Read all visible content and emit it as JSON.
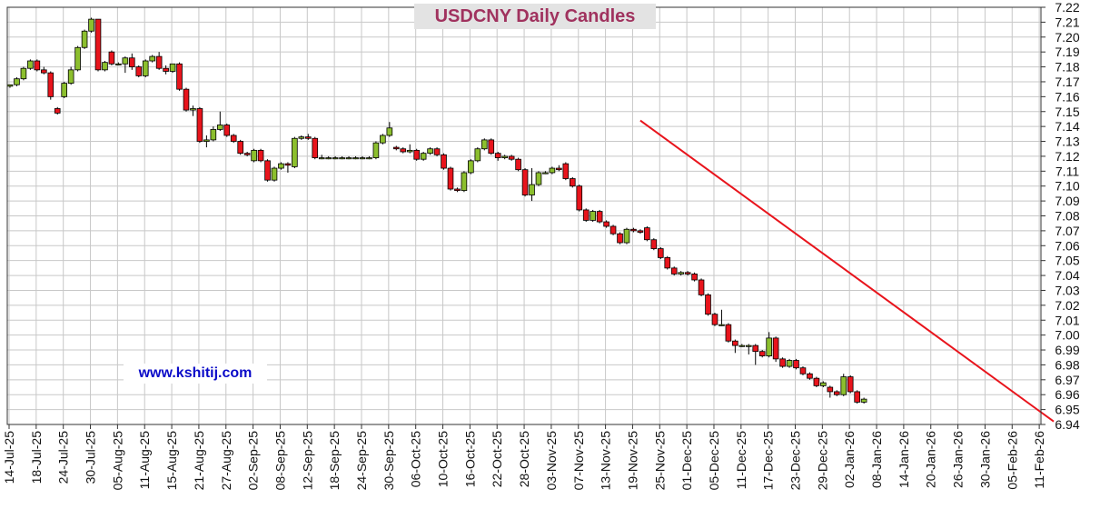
{
  "chart_data": {
    "type": "candlestick",
    "title": "USDCNY Daily Candles",
    "watermark": "www.kshitij.com",
    "y_ticks": [
      "7.22",
      "7.21",
      "7.20",
      "7.19",
      "7.18",
      "7.17",
      "7.16",
      "7.15",
      "7.14",
      "7.13",
      "7.12",
      "7.11",
      "7.10",
      "7.09",
      "7.08",
      "7.07",
      "7.06",
      "7.05",
      "7.04",
      "7.03",
      "7.02",
      "7.01",
      "7.00",
      "6.99",
      "6.98",
      "6.97",
      "6.96",
      "6.95",
      "6.94"
    ],
    "ylim": [
      6.94,
      7.22
    ],
    "x_ticks": [
      "14-Jul-25",
      "18-Jul-25",
      "24-Jul-25",
      "30-Jul-25",
      "05-Aug-25",
      "11-Aug-25",
      "15-Aug-25",
      "21-Aug-25",
      "27-Aug-25",
      "02-Sep-25",
      "08-Sep-25",
      "12-Sep-25",
      "18-Sep-25",
      "24-Sep-25",
      "30-Sep-25",
      "06-Oct-25",
      "10-Oct-25",
      "16-Oct-25",
      "22-Oct-25",
      "28-Oct-25",
      "03-Nov-25",
      "07-Nov-25",
      "13-Nov-25",
      "19-Nov-25",
      "25-Nov-25",
      "01-Dec-25",
      "05-Dec-25",
      "11-Dec-25",
      "17-Dec-25",
      "23-Dec-25",
      "29-Dec-25",
      "02-Jan-26",
      "08-Jan-26",
      "14-Jan-26",
      "20-Jan-26",
      "26-Jan-26",
      "30-Jan-26",
      "05-Feb-26",
      "11-Feb-26"
    ],
    "up_color": "#8cbf2e",
    "down_color": "#e8141c",
    "trendline": {
      "color": "#e8141c",
      "start": {
        "bar": 93,
        "value": 7.144
      },
      "end": {
        "bar": 154,
        "value": 6.942
      }
    },
    "grid": true,
    "candles": [
      [
        7.167,
        7.168,
        7.166,
        7.168
      ],
      [
        7.168,
        7.173,
        7.167,
        7.172
      ],
      [
        7.172,
        7.18,
        7.171,
        7.179
      ],
      [
        7.179,
        7.185,
        7.178,
        7.184
      ],
      [
        7.184,
        7.185,
        7.177,
        7.178
      ],
      [
        7.178,
        7.18,
        7.175,
        7.176
      ],
      [
        7.176,
        7.177,
        7.158,
        7.16
      ],
      [
        7.152,
        7.153,
        7.148,
        7.149
      ],
      [
        7.16,
        7.17,
        7.159,
        7.169
      ],
      [
        7.169,
        7.18,
        7.168,
        7.178
      ],
      [
        7.178,
        7.194,
        7.177,
        7.193
      ],
      [
        7.193,
        7.205,
        7.192,
        7.204
      ],
      [
        7.204,
        7.213,
        7.203,
        7.212
      ],
      [
        7.212,
        7.212,
        7.177,
        7.178
      ],
      [
        7.178,
        7.184,
        7.177,
        7.183
      ],
      [
        7.19,
        7.191,
        7.181,
        7.182
      ],
      [
        7.182,
        7.183,
        7.181,
        7.182
      ],
      [
        7.182,
        7.187,
        7.176,
        7.186
      ],
      [
        7.186,
        7.189,
        7.178,
        7.18
      ],
      [
        7.18,
        7.181,
        7.173,
        7.174
      ],
      [
        7.174,
        7.185,
        7.173,
        7.184
      ],
      [
        7.184,
        7.188,
        7.183,
        7.187
      ],
      [
        7.187,
        7.19,
        7.178,
        7.179
      ],
      [
        7.179,
        7.181,
        7.175,
        7.177
      ],
      [
        7.177,
        7.182,
        7.176,
        7.182
      ],
      [
        7.182,
        7.183,
        7.164,
        7.165
      ],
      [
        7.165,
        7.166,
        7.15,
        7.151
      ],
      [
        7.151,
        7.154,
        7.147,
        7.152
      ],
      [
        7.152,
        7.153,
        7.129,
        7.13
      ],
      [
        7.13,
        7.134,
        7.126,
        7.131
      ],
      [
        7.131,
        7.14,
        7.13,
        7.138
      ],
      [
        7.138,
        7.15,
        7.137,
        7.141
      ],
      [
        7.141,
        7.142,
        7.133,
        7.134
      ],
      [
        7.134,
        7.135,
        7.129,
        7.13
      ],
      [
        7.13,
        7.131,
        7.121,
        7.122
      ],
      [
        7.122,
        7.123,
        7.12,
        7.121
      ],
      [
        7.117,
        7.125,
        7.116,
        7.124
      ],
      [
        7.124,
        7.125,
        7.116,
        7.117
      ],
      [
        7.117,
        7.118,
        7.103,
        7.104
      ],
      [
        7.104,
        7.113,
        7.103,
        7.112
      ],
      [
        7.112,
        7.116,
        7.111,
        7.115
      ],
      [
        7.115,
        7.116,
        7.109,
        7.114
      ],
      [
        7.113,
        7.133,
        7.112,
        7.132
      ],
      [
        7.132,
        7.134,
        7.131,
        7.133
      ],
      [
        7.133,
        7.135,
        7.131,
        7.132
      ],
      [
        7.132,
        7.133,
        7.118,
        7.119
      ],
      [
        7.119,
        7.121,
        7.118,
        7.119
      ],
      [
        7.119,
        7.12,
        7.118,
        7.119
      ],
      [
        7.119,
        7.12,
        7.118,
        7.119
      ],
      [
        7.119,
        7.12,
        7.118,
        7.119
      ],
      [
        7.119,
        7.12,
        7.118,
        7.119
      ],
      [
        7.119,
        7.12,
        7.118,
        7.119
      ],
      [
        7.119,
        7.12,
        7.118,
        7.119
      ],
      [
        7.119,
        7.12,
        7.118,
        7.119
      ],
      [
        7.119,
        7.13,
        7.118,
        7.129
      ],
      [
        7.129,
        7.135,
        7.128,
        7.134
      ],
      [
        7.134,
        7.143,
        7.133,
        7.139
      ],
      [
        7.126,
        7.127,
        7.124,
        7.125
      ],
      [
        7.125,
        7.126,
        7.122,
        7.123
      ],
      [
        7.123,
        7.128,
        7.122,
        7.124
      ],
      [
        7.124,
        7.125,
        7.117,
        7.118
      ],
      [
        7.118,
        7.123,
        7.117,
        7.122
      ],
      [
        7.122,
        7.126,
        7.121,
        7.125
      ],
      [
        7.125,
        7.126,
        7.12,
        7.121
      ],
      [
        7.121,
        7.122,
        7.111,
        7.112
      ],
      [
        7.112,
        7.113,
        7.097,
        7.098
      ],
      [
        7.098,
        7.099,
        7.096,
        7.097
      ],
      [
        7.097,
        7.11,
        7.096,
        7.109
      ],
      [
        7.109,
        7.118,
        7.108,
        7.117
      ],
      [
        7.117,
        7.126,
        7.116,
        7.125
      ],
      [
        7.125,
        7.132,
        7.124,
        7.131
      ],
      [
        7.131,
        7.132,
        7.121,
        7.122
      ],
      [
        7.122,
        7.123,
        7.117,
        7.119
      ],
      [
        7.119,
        7.121,
        7.118,
        7.12
      ],
      [
        7.12,
        7.121,
        7.117,
        7.118
      ],
      [
        7.118,
        7.119,
        7.11,
        7.111
      ],
      [
        7.111,
        7.112,
        7.093,
        7.094
      ],
      [
        7.094,
        7.112,
        7.09,
        7.101
      ],
      [
        7.101,
        7.11,
        7.1,
        7.109
      ],
      [
        7.109,
        7.11,
        7.108,
        7.109
      ],
      [
        7.109,
        7.113,
        7.108,
        7.112
      ],
      [
        7.112,
        7.114,
        7.11,
        7.111
      ],
      [
        7.115,
        7.116,
        7.104,
        7.105
      ],
      [
        7.105,
        7.106,
        7.099,
        7.1
      ],
      [
        7.1,
        7.101,
        7.083,
        7.084
      ],
      [
        7.084,
        7.085,
        7.076,
        7.077
      ],
      [
        7.077,
        7.084,
        7.076,
        7.083
      ],
      [
        7.083,
        7.084,
        7.075,
        7.076
      ],
      [
        7.076,
        7.077,
        7.072,
        7.073
      ],
      [
        7.073,
        7.074,
        7.067,
        7.068
      ],
      [
        7.068,
        7.069,
        7.061,
        7.062
      ],
      [
        7.062,
        7.072,
        7.061,
        7.071
      ],
      [
        7.071,
        7.072,
        7.069,
        7.07
      ],
      [
        7.07,
        7.071,
        7.068,
        7.069
      ],
      [
        7.072,
        7.073,
        7.063,
        7.064
      ],
      [
        7.064,
        7.065,
        7.057,
        7.058
      ],
      [
        7.058,
        7.059,
        7.051,
        7.052
      ],
      [
        7.052,
        7.053,
        7.044,
        7.045
      ],
      [
        7.045,
        7.046,
        7.04,
        7.041
      ],
      [
        7.041,
        7.043,
        7.04,
        7.042
      ],
      [
        7.042,
        7.043,
        7.04,
        7.041
      ],
      [
        7.041,
        7.042,
        7.036,
        7.037
      ],
      [
        7.037,
        7.038,
        7.026,
        7.027
      ],
      [
        7.027,
        7.028,
        7.013,
        7.014
      ],
      [
        7.014,
        7.015,
        7.006,
        7.007
      ],
      [
        7.007,
        7.017,
        7.006,
        7.007
      ],
      [
        7.007,
        7.008,
        6.995,
        6.996
      ],
      [
        6.996,
        6.997,
        6.988,
        6.993
      ],
      [
        6.993,
        6.994,
        6.992,
        6.993
      ],
      [
        6.993,
        6.994,
        6.987,
        6.993
      ],
      [
        6.993,
        6.994,
        6.98,
        6.989
      ],
      [
        6.989,
        6.99,
        6.985,
        6.986
      ],
      [
        6.986,
        7.002,
        6.985,
        6.998
      ],
      [
        6.998,
        6.999,
        6.982,
        6.984
      ],
      [
        6.984,
        6.985,
        6.978,
        6.979
      ],
      [
        6.979,
        6.984,
        6.978,
        6.983
      ],
      [
        6.983,
        6.984,
        6.977,
        6.978
      ],
      [
        6.978,
        6.979,
        6.973,
        6.974
      ],
      [
        6.974,
        6.975,
        6.97,
        6.971
      ],
      [
        6.971,
        6.972,
        6.965,
        6.966
      ],
      [
        6.966,
        6.969,
        6.965,
        6.968
      ],
      [
        6.965,
        6.966,
        6.958,
        6.962
      ],
      [
        6.962,
        6.963,
        6.959,
        6.96
      ],
      [
        6.96,
        6.974,
        6.959,
        6.972
      ],
      [
        6.972,
        6.973,
        6.961,
        6.962
      ],
      [
        6.962,
        6.963,
        6.954,
        6.955
      ],
      [
        6.955,
        6.958,
        6.954,
        6.957
      ]
    ]
  }
}
